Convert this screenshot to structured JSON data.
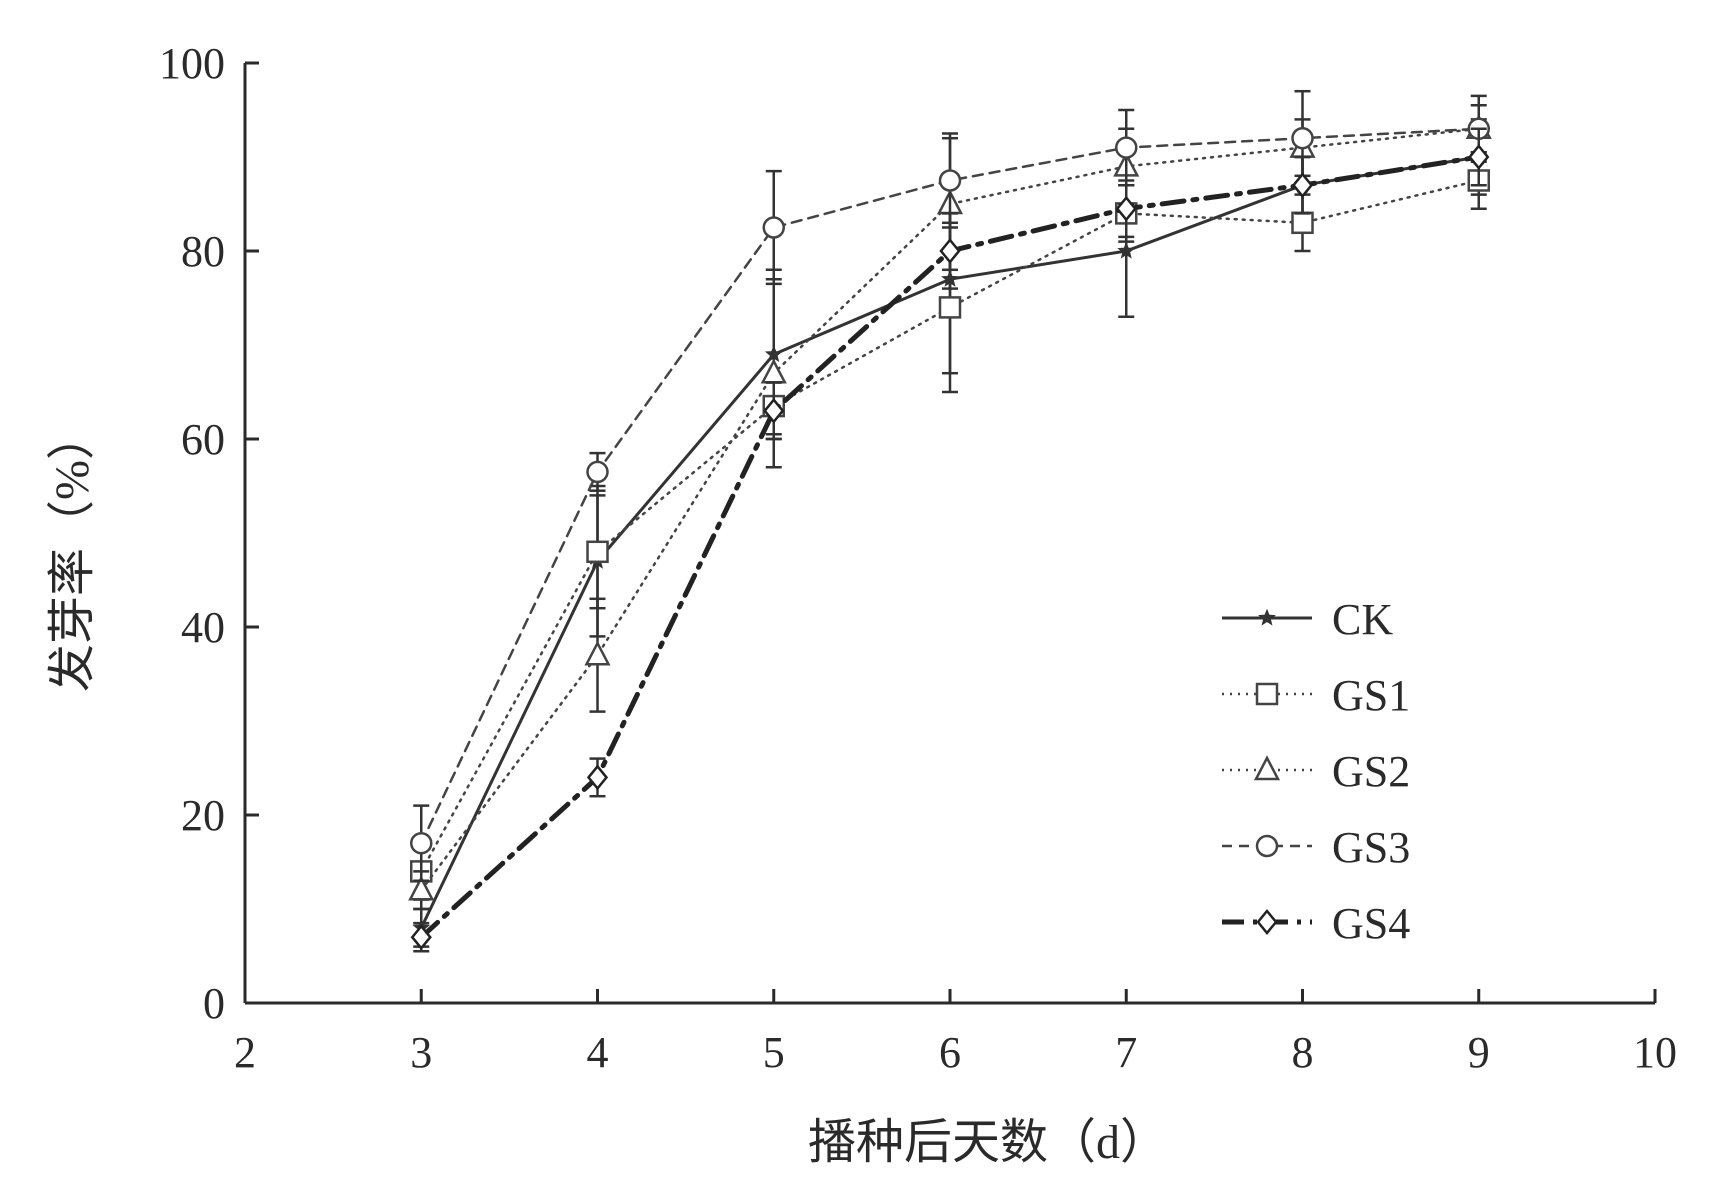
{
  "chart_data": {
    "type": "line",
    "title": "",
    "xlabel": "播种后天数（d）",
    "ylabel": "发芽率（%）",
    "xlim": [
      2,
      10
    ],
    "ylim": [
      0,
      100
    ],
    "xticks": [
      2,
      3,
      4,
      5,
      6,
      7,
      8,
      9,
      10
    ],
    "yticks": [
      0,
      20,
      40,
      60,
      80,
      100
    ],
    "grid": false,
    "legend_position": "lower-right",
    "x": [
      3,
      4,
      5,
      6,
      7,
      8,
      9
    ],
    "series": [
      {
        "name": "CK",
        "marker": "star",
        "line_style": "solid",
        "color": "#333333",
        "values": [
          8,
          47,
          69,
          77,
          80,
          87,
          90
        ],
        "errors": [
          2,
          8,
          9,
          10,
          7,
          3,
          4
        ]
      },
      {
        "name": "GS1",
        "marker": "square",
        "line_style": "dotted",
        "color": "#444444",
        "values": [
          14,
          48,
          63.5,
          74,
          84,
          83,
          87.5
        ],
        "errors": [
          3,
          6,
          3,
          9,
          3,
          3,
          3
        ]
      },
      {
        "name": "GS2",
        "marker": "triangle",
        "line_style": "dotted",
        "color": "#444444",
        "values": [
          12,
          37,
          67,
          85,
          89,
          91,
          93
        ],
        "errors": [
          2,
          6,
          10,
          7,
          4,
          3,
          2.5
        ]
      },
      {
        "name": "GS3",
        "marker": "circle",
        "line_style": "dashed",
        "color": "#444444",
        "values": [
          17,
          56.5,
          82.5,
          87.5,
          91,
          92,
          93
        ],
        "errors": [
          4,
          2,
          6,
          5,
          4,
          5,
          3.5
        ]
      },
      {
        "name": "GS4",
        "marker": "diamond",
        "line_style": "dash-dot",
        "color": "#222222",
        "values": [
          7,
          24,
          63,
          80,
          84.5,
          87,
          90
        ],
        "errors": [
          1.5,
          2,
          3,
          4,
          3,
          3,
          3
        ]
      }
    ]
  }
}
